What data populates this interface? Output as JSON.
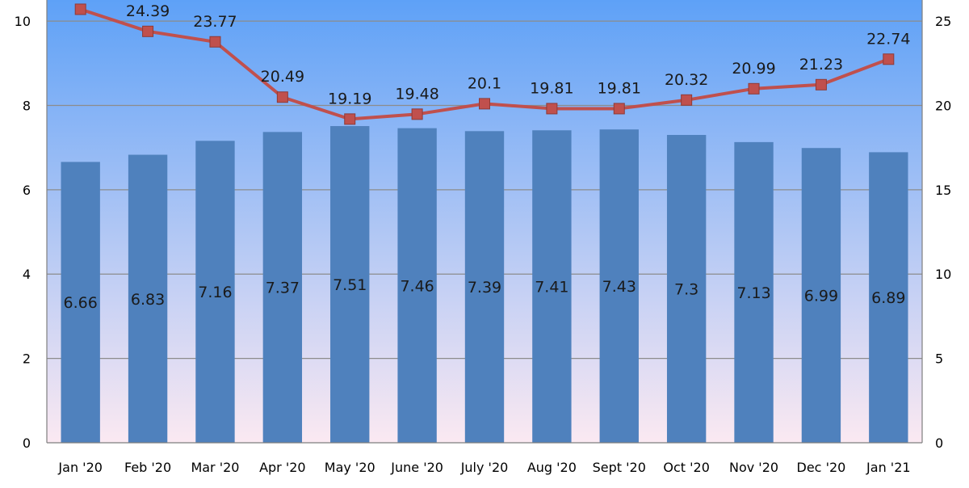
{
  "chart_data": {
    "type": "bar",
    "categories": [
      "Jan '20",
      "Feb '20",
      "Mar '20",
      "Apr '20",
      "May '20",
      "June '20",
      "July '20",
      "Aug '20",
      "Sept '20",
      "Oct '20",
      "Nov '20",
      "Dec '20",
      "Jan '21"
    ],
    "series": [
      {
        "type": "bar",
        "axis": "left",
        "color": "#4f81bd",
        "values": [
          6.66,
          6.83,
          7.16,
          7.37,
          7.51,
          7.46,
          7.39,
          7.41,
          7.43,
          7.3,
          7.13,
          6.99,
          6.89
        ],
        "labels": [
          "6.66",
          "6.83",
          "7.16",
          "7.37",
          "7.51",
          "7.46",
          "7.39",
          "7.41",
          "7.43",
          "7.3",
          "7.13",
          "6.99",
          "6.89"
        ]
      },
      {
        "type": "line",
        "axis": "right",
        "color": "#c0504d",
        "marker": "square",
        "values": [
          25.7,
          24.39,
          23.77,
          20.49,
          19.19,
          19.48,
          20.1,
          19.81,
          19.81,
          20.32,
          20.99,
          21.23,
          22.74
        ],
        "labels": [
          "",
          "24.39",
          "23.77",
          "20.49",
          "19.19",
          "19.48",
          "20.1",
          "19.81",
          "19.81",
          "20.32",
          "20.99",
          "21.23",
          "22.74"
        ]
      }
    ],
    "y_left": {
      "min": 0,
      "max": 10.5,
      "ticks": [
        "0",
        "2",
        "4",
        "6",
        "8",
        "10"
      ]
    },
    "y_right": {
      "min": 0,
      "max": 26.25,
      "ticks": [
        "0",
        "5",
        "10",
        "15",
        "20",
        "25"
      ]
    },
    "grid": true,
    "background_gradient": [
      "#5ea1f7",
      "#fbe9f2"
    ],
    "title": "",
    "xlabel": "",
    "ylabel": ""
  }
}
